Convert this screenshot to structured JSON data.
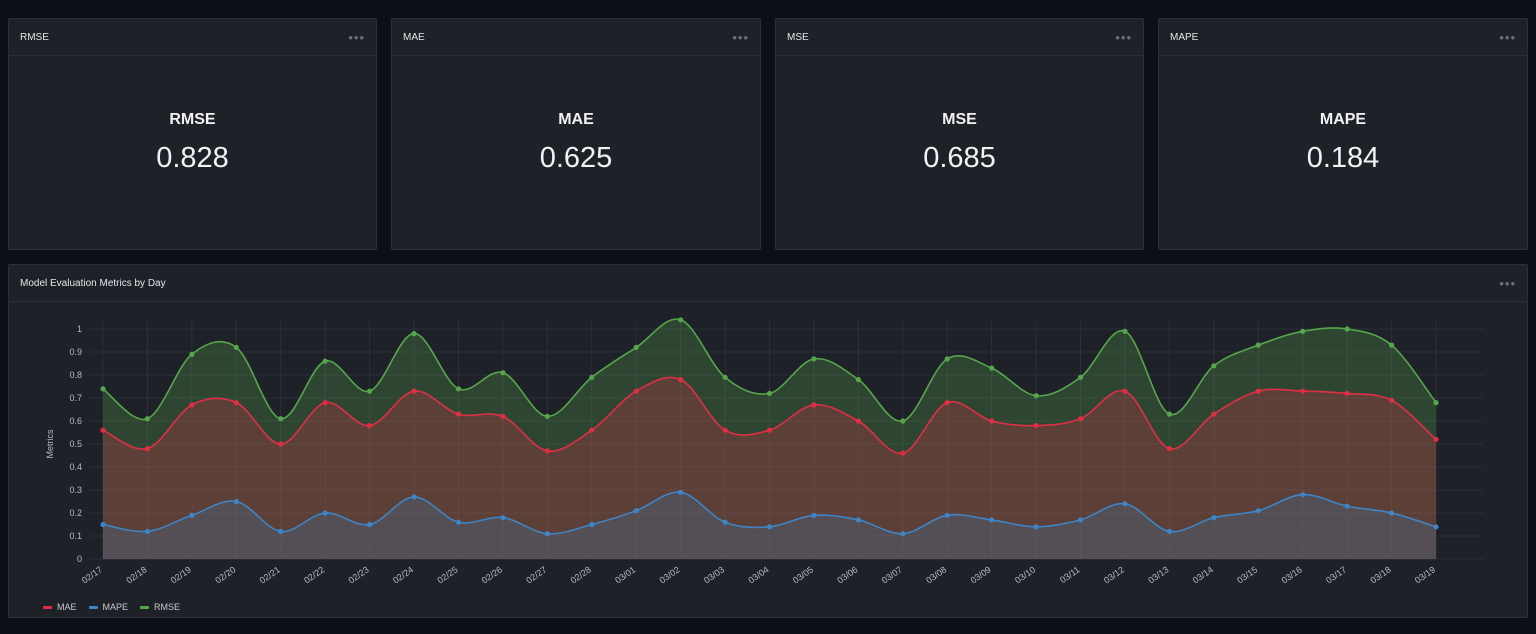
{
  "stats": [
    {
      "panel_title": "RMSE",
      "label": "RMSE",
      "value": "0.828"
    },
    {
      "panel_title": "MAE",
      "label": "MAE",
      "value": "0.625"
    },
    {
      "panel_title": "MSE",
      "label": "MSE",
      "value": "0.685"
    },
    {
      "panel_title": "MAPE",
      "label": "MAPE",
      "value": "0.184"
    }
  ],
  "menu_icon": "ellipsis-icon",
  "chart_panel": {
    "title": "Model Evaluation Metrics by Day"
  },
  "chart_data": {
    "type": "area",
    "title": "Model Evaluation Metrics by Day",
    "xlabel": "",
    "ylabel": "Metrics",
    "ylim": [
      0,
      1
    ],
    "yticks": [
      "0",
      "0.1",
      "0.2",
      "0.3",
      "0.4",
      "0.5",
      "0.6",
      "0.7",
      "0.8",
      "0.9",
      "1"
    ],
    "grid": true,
    "legend_position": "bottom-left",
    "categories": [
      "02/17",
      "02/18",
      "02/19",
      "02/20",
      "02/21",
      "02/22",
      "02/23",
      "02/24",
      "02/25",
      "02/26",
      "02/27",
      "02/28",
      "03/01",
      "03/02",
      "03/03",
      "03/04",
      "03/05",
      "03/06",
      "03/07",
      "03/08",
      "03/09",
      "03/10",
      "03/11",
      "03/12",
      "03/13",
      "03/14",
      "03/15",
      "03/16",
      "03/17",
      "03/18",
      "03/19"
    ],
    "series": [
      {
        "name": "RMSE",
        "color": "#56a64b",
        "values": [
          0.74,
          0.61,
          0.89,
          0.92,
          0.61,
          0.86,
          0.73,
          0.98,
          0.74,
          0.81,
          0.62,
          0.79,
          0.92,
          1.04,
          0.79,
          0.72,
          0.87,
          0.78,
          0.6,
          0.87,
          0.83,
          0.71,
          0.79,
          0.99,
          0.63,
          0.84,
          0.93,
          0.99,
          1.0,
          0.93,
          0.68
        ]
      },
      {
        "name": "MAE",
        "color": "#e02f44",
        "values": [
          0.56,
          0.48,
          0.67,
          0.68,
          0.5,
          0.68,
          0.58,
          0.73,
          0.63,
          0.62,
          0.47,
          0.56,
          0.73,
          0.78,
          0.56,
          0.56,
          0.67,
          0.6,
          0.46,
          0.68,
          0.6,
          0.58,
          0.61,
          0.73,
          0.48,
          0.63,
          0.73,
          0.73,
          0.72,
          0.69,
          0.52
        ]
      },
      {
        "name": "MAPE",
        "color": "#3d85c6",
        "values": [
          0.15,
          0.12,
          0.19,
          0.25,
          0.12,
          0.2,
          0.15,
          0.27,
          0.16,
          0.18,
          0.11,
          0.15,
          0.21,
          0.29,
          0.16,
          0.14,
          0.19,
          0.17,
          0.11,
          0.19,
          0.17,
          0.14,
          0.17,
          0.24,
          0.12,
          0.18,
          0.21,
          0.28,
          0.23,
          0.2,
          0.14
        ]
      }
    ],
    "legend": [
      {
        "name": "MAE",
        "color": "#e02f44"
      },
      {
        "name": "MAPE",
        "color": "#3d85c6"
      },
      {
        "name": "RMSE",
        "color": "#56a64b"
      }
    ]
  }
}
